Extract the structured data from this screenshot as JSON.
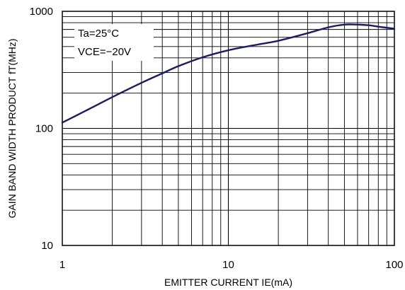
{
  "chart_data": {
    "type": "line",
    "title": "",
    "xlabel": "EMITTER CURRENT IE(mA)",
    "ylabel": "GAIN BAND WIDTH PRODUCT fT(MHz)",
    "xscale": "log",
    "yscale": "log",
    "xlim": [
      1,
      100
    ],
    "ylim": [
      10,
      1000
    ],
    "grid": true,
    "x_ticks": [
      {
        "value": 1,
        "label": "1"
      },
      {
        "value": 10,
        "label": "10"
      },
      {
        "value": 100,
        "label": "100"
      }
    ],
    "y_ticks": [
      {
        "value": 10,
        "label": "10"
      },
      {
        "value": 100,
        "label": "100"
      },
      {
        "value": 1000,
        "label": "1000"
      }
    ],
    "annotations": [
      "Ta=25°C",
      "VCE=−20V"
    ],
    "series": [
      {
        "x": [
          1,
          1.5,
          2,
          3,
          4,
          5,
          7,
          10,
          15,
          20,
          30,
          40,
          50,
          60,
          70,
          80,
          100
        ],
        "y": [
          112,
          150,
          185,
          245,
          295,
          340,
          405,
          465,
          520,
          560,
          650,
          730,
          770,
          770,
          760,
          740,
          710
        ]
      }
    ]
  }
}
